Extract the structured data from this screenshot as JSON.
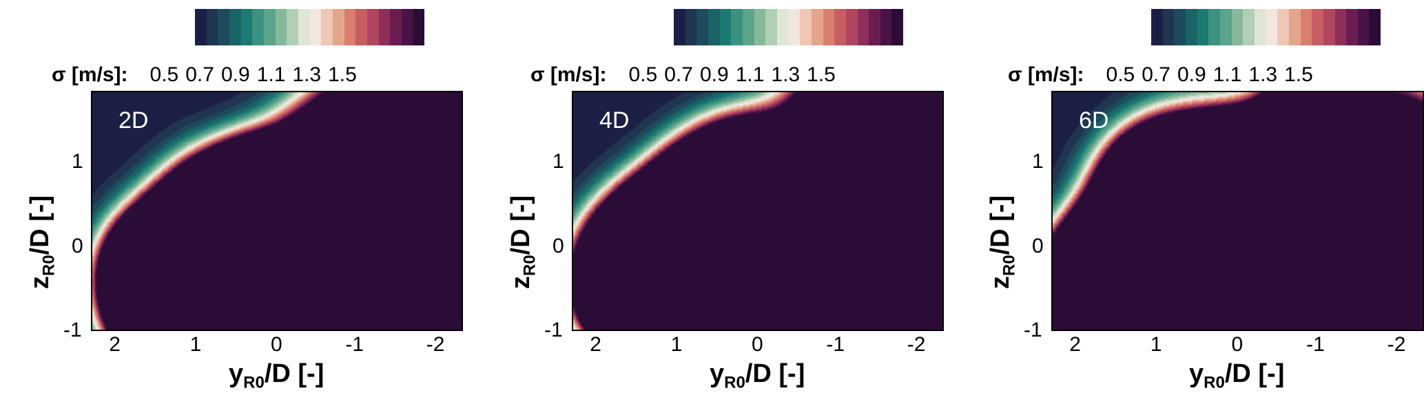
{
  "chart_data": [
    {
      "type": "heatmap",
      "panel_label": "2D",
      "xlabel": "y",
      "xlabel_sub": "R0",
      "xlabel_rest": "/D [-]",
      "ylabel": "z",
      "ylabel_sub": "R0",
      "ylabel_rest": "/D [-]",
      "xlim": [
        2.3,
        -2.3
      ],
      "ylim": [
        -1,
        1.85
      ],
      "xticks": [
        "2",
        "1",
        "0",
        "-1",
        "-2"
      ],
      "yticks": [
        "1",
        "0",
        "-1"
      ]
    },
    {
      "type": "heatmap",
      "panel_label": "4D",
      "xlabel": "y",
      "xlabel_sub": "R0",
      "xlabel_rest": "/D [-]",
      "ylabel": "z",
      "ylabel_sub": "R0",
      "ylabel_rest": "/D [-]",
      "xlim": [
        2.3,
        -2.3
      ],
      "ylim": [
        -1,
        1.85
      ],
      "xticks": [
        "2",
        "1",
        "0",
        "-1",
        "-2"
      ],
      "yticks": [
        "1",
        "0",
        "-1"
      ]
    },
    {
      "type": "heatmap",
      "panel_label": "6D",
      "xlabel": "y",
      "xlabel_sub": "R0",
      "xlabel_rest": "/D [-]",
      "ylabel": "z",
      "ylabel_sub": "R0",
      "ylabel_rest": "/D [-]",
      "xlim": [
        2.3,
        -2.3
      ],
      "ylim": [
        -1,
        1.85
      ],
      "xticks": [
        "2",
        "1",
        "0",
        "-1",
        "-2"
      ],
      "yticks": [
        "1",
        "0",
        "-1"
      ]
    }
  ],
  "colorbar": {
    "label": "σ [m/s]:",
    "ticks": [
      "0.5",
      "0.7",
      "0.9",
      "1.1",
      "1.3",
      "1.5"
    ],
    "range": [
      0.4,
      1.6
    ],
    "colors": [
      "#1c1f45",
      "#1f3550",
      "#1d4a5c",
      "#1a6366",
      "#1b7a72",
      "#3c9280",
      "#5aa58a",
      "#86b99c",
      "#b0cfb3",
      "#dfe6d8",
      "#f3e6df",
      "#efc7b4",
      "#e4a58e",
      "#d97f6e",
      "#c75e62",
      "#b0465f",
      "#8e2f5b",
      "#6b1d52",
      "#4a1347",
      "#2b0c36"
    ]
  }
}
